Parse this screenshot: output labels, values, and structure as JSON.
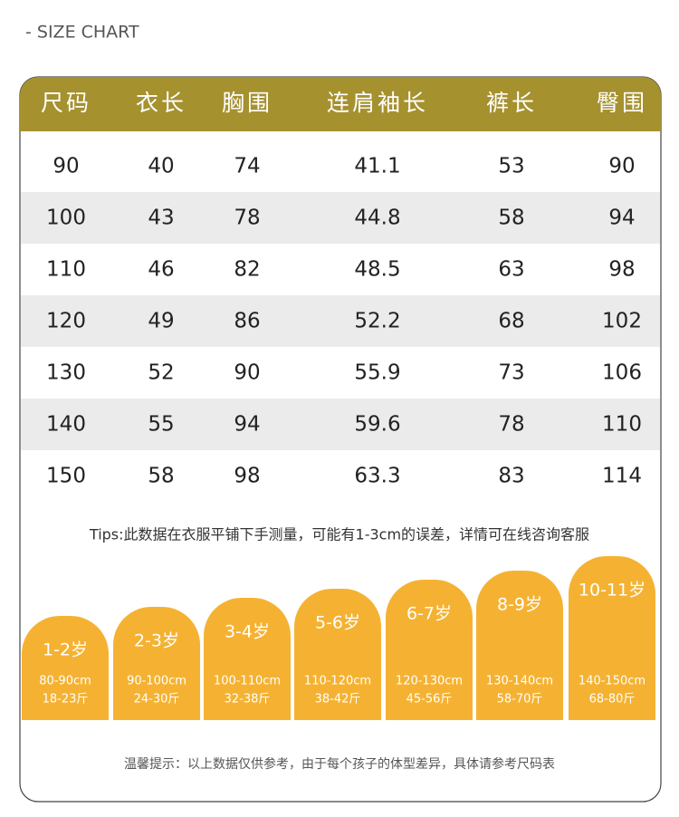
{
  "title": "- SIZE CHART",
  "table": {
    "headers": [
      "尺码",
      "衣长",
      "胸围",
      "连肩袖长",
      "裤长",
      "臀围"
    ],
    "rows": [
      [
        "90",
        "40",
        "74",
        "41.1",
        "53",
        "90"
      ],
      [
        "100",
        "43",
        "78",
        "44.8",
        "58",
        "94"
      ],
      [
        "110",
        "46",
        "82",
        "48.5",
        "63",
        "98"
      ],
      [
        "120",
        "49",
        "86",
        "52.2",
        "68",
        "102"
      ],
      [
        "130",
        "52",
        "90",
        "55.9",
        "73",
        "106"
      ],
      [
        "140",
        "55",
        "94",
        "59.6",
        "78",
        "110"
      ],
      [
        "150",
        "58",
        "98",
        "63.3",
        "83",
        "114"
      ]
    ]
  },
  "tips": "Tips:此数据在衣服平铺下手测量，可能有1-3cm的误差，详情可在线咨询客服",
  "ages": [
    {
      "label": "1-2岁",
      "height": "80-90cm",
      "weight": "18-23斤"
    },
    {
      "label": "2-3岁",
      "height": "90-100cm",
      "weight": "24-30斤"
    },
    {
      "label": "3-4岁",
      "height": "100-110cm",
      "weight": "32-38斤"
    },
    {
      "label": "5-6岁",
      "height": "110-120cm",
      "weight": "38-42斤"
    },
    {
      "label": "6-7岁",
      "height": "120-130cm",
      "weight": "45-56斤"
    },
    {
      "label": "8-9岁",
      "height": "130-140cm",
      "weight": "58-70斤"
    },
    {
      "label": "10-11岁",
      "height": "140-150cm",
      "weight": "68-80斤"
    }
  ],
  "footer": "温馨提示：以上数据仅供参考，由于每个孩子的体型差异，具体请参考尺码表"
}
